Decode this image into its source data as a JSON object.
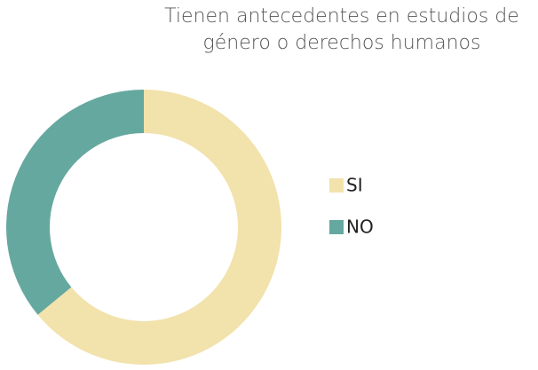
{
  "chart_data": {
    "type": "donut",
    "title": "Tienen antecedentes en estudios de género o derechos humanos",
    "categories": [
      "SI",
      "NO"
    ],
    "values": [
      64,
      36
    ],
    "colors": [
      "#f2e2ab",
      "#65a89f"
    ],
    "legend": "right"
  }
}
